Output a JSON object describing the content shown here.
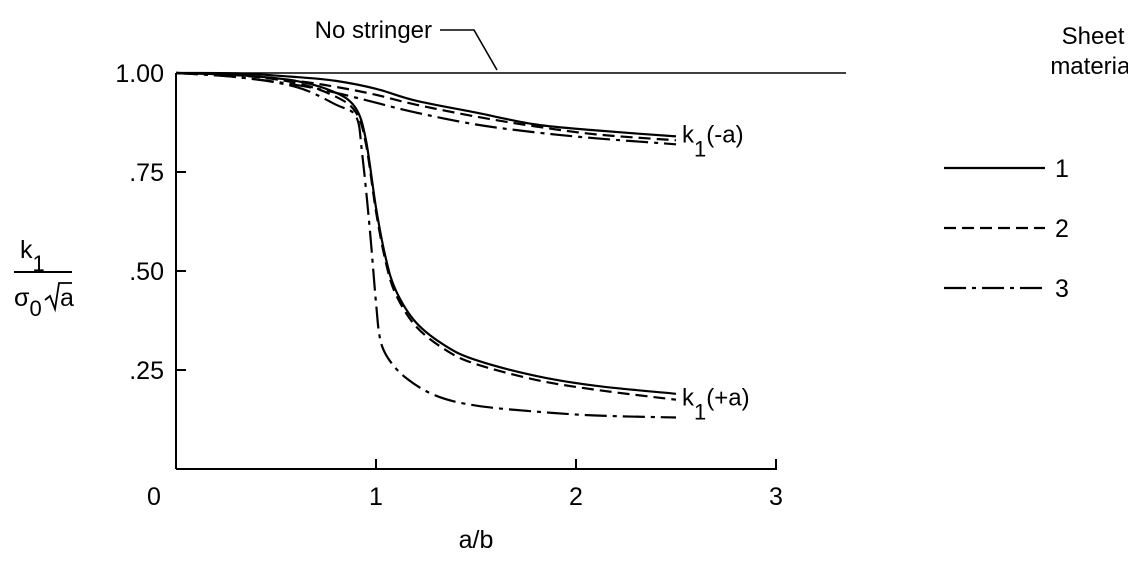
{
  "chart_data": {
    "type": "line",
    "xlabel": "a/b",
    "ylabel": {
      "numerator": "k",
      "numerator_sub": "1",
      "denominator": "σ",
      "denominator_sub": "0",
      "denominator_radicand": "a"
    },
    "xlim": [
      0,
      3
    ],
    "ylim": [
      0,
      1.0
    ],
    "xticks": [
      {
        "value": 0,
        "label": "0"
      },
      {
        "value": 1,
        "label": "1"
      },
      {
        "value": 2,
        "label": "2"
      },
      {
        "value": 3,
        "label": "3"
      }
    ],
    "yticks": [
      {
        "value": 0.25,
        "label": ".25"
      },
      {
        "value": 0.5,
        "label": ".50"
      },
      {
        "value": 0.75,
        "label": ".75"
      },
      {
        "value": 1.0,
        "label": "1.00"
      }
    ],
    "grid": false,
    "reference_line": {
      "y": 1.0,
      "x": [
        0,
        2.5
      ],
      "label": "No stringer"
    },
    "legend": {
      "title_lines": [
        "Sheet",
        "material"
      ],
      "placement": "right",
      "entries": [
        {
          "label": "1",
          "dash": "solid"
        },
        {
          "label": "2",
          "dash": "dashed"
        },
        {
          "label": "3",
          "dash": "dashdot"
        }
      ]
    },
    "curve_labels": [
      {
        "group": "minus",
        "main": "k",
        "sub": "1",
        "paren": "(-a)"
      },
      {
        "group": "plus",
        "main": "k",
        "sub": "1",
        "paren": "(+a)"
      }
    ],
    "series": [
      {
        "group": "minus",
        "material": "1",
        "dash": "solid",
        "x": [
          0,
          0.3,
          0.6,
          0.8,
          1.0,
          1.2,
          1.5,
          1.8,
          2.1,
          2.5
        ],
        "y": [
          1.0,
          0.999,
          0.99,
          0.98,
          0.96,
          0.93,
          0.9,
          0.87,
          0.855,
          0.84
        ]
      },
      {
        "group": "minus",
        "material": "2",
        "dash": "dashed",
        "x": [
          0,
          0.3,
          0.6,
          0.8,
          1.0,
          1.2,
          1.5,
          1.8,
          2.1,
          2.5
        ],
        "y": [
          1.0,
          0.995,
          0.98,
          0.965,
          0.945,
          0.92,
          0.89,
          0.865,
          0.845,
          0.83
        ]
      },
      {
        "group": "minus",
        "material": "3",
        "dash": "dashdot",
        "x": [
          0,
          0.3,
          0.6,
          0.8,
          1.0,
          1.2,
          1.5,
          1.8,
          2.1,
          2.5
        ],
        "y": [
          1.0,
          0.99,
          0.97,
          0.95,
          0.925,
          0.9,
          0.87,
          0.85,
          0.835,
          0.82
        ]
      },
      {
        "group": "plus",
        "material": "1",
        "dash": "solid",
        "x": [
          0,
          0.3,
          0.6,
          0.8,
          0.9,
          0.95,
          1.0,
          1.05,
          1.1,
          1.2,
          1.35,
          1.5,
          1.8,
          2.1,
          2.5
        ],
        "y": [
          1.0,
          0.995,
          0.98,
          0.95,
          0.91,
          0.83,
          0.66,
          0.53,
          0.45,
          0.37,
          0.31,
          0.275,
          0.235,
          0.21,
          0.19
        ]
      },
      {
        "group": "plus",
        "material": "2",
        "dash": "dashed",
        "x": [
          0,
          0.3,
          0.6,
          0.8,
          0.9,
          0.95,
          1.0,
          1.05,
          1.1,
          1.2,
          1.35,
          1.5,
          1.8,
          2.1,
          2.5
        ],
        "y": [
          1.0,
          0.995,
          0.975,
          0.94,
          0.9,
          0.82,
          0.65,
          0.52,
          0.44,
          0.36,
          0.3,
          0.265,
          0.225,
          0.2,
          0.175
        ]
      },
      {
        "group": "plus",
        "material": "3",
        "dash": "dashdot",
        "x": [
          0,
          0.3,
          0.6,
          0.8,
          0.9,
          0.93,
          0.97,
          1.0,
          1.02,
          1.06,
          1.15,
          1.3,
          1.5,
          1.8,
          2.1,
          2.5
        ],
        "y": [
          1.0,
          0.99,
          0.965,
          0.92,
          0.89,
          0.8,
          0.6,
          0.42,
          0.33,
          0.28,
          0.23,
          0.185,
          0.16,
          0.145,
          0.135,
          0.13
        ]
      }
    ]
  }
}
